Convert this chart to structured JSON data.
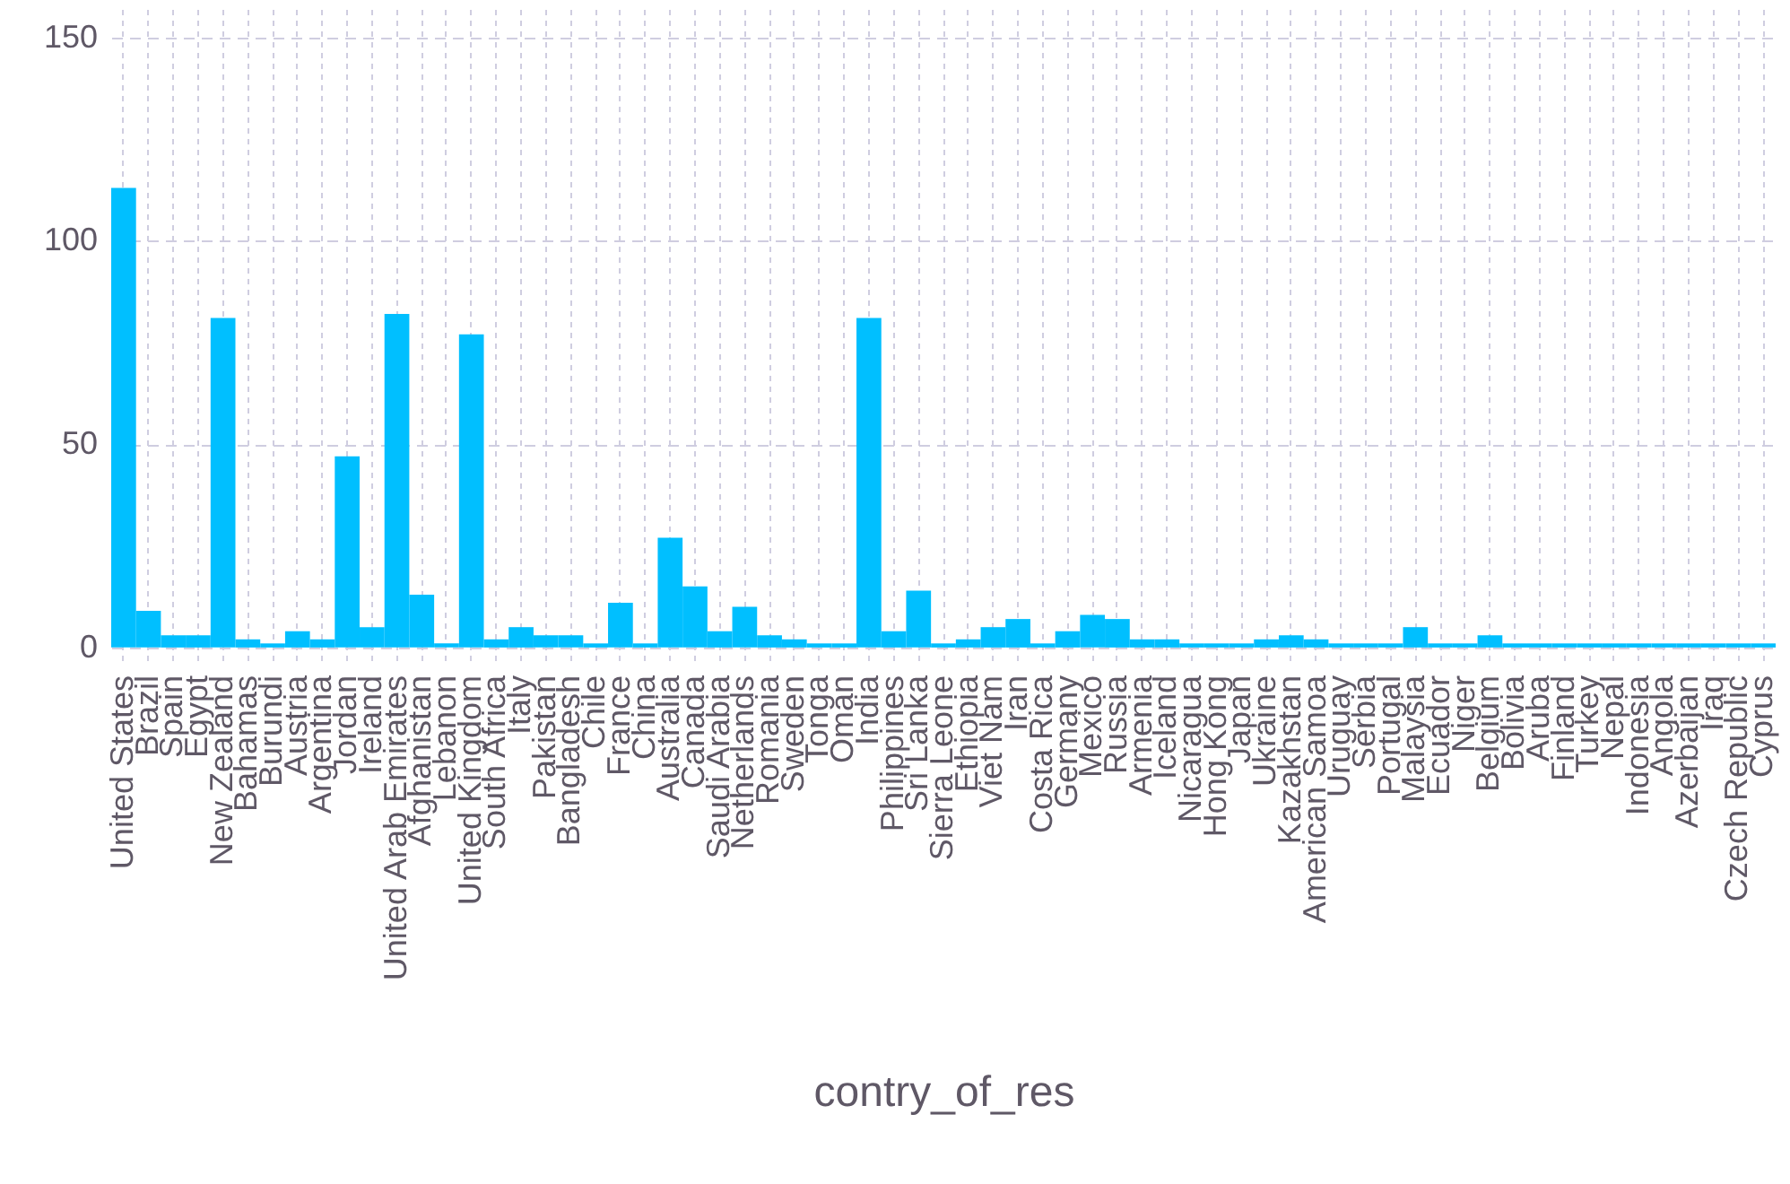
{
  "chart_data": {
    "type": "bar",
    "xlabel": "contry_of_res",
    "categories": [
      "United States",
      "Brazil",
      "Spain",
      "Egypt",
      "New Zealand",
      "Bahamas",
      "Burundi",
      "Austria",
      "Argentina",
      "Jordan",
      "Ireland",
      "United Arab Emirates",
      "Afghanistan",
      "Lebanon",
      "United Kingdom",
      "South Africa",
      "Italy",
      "Pakistan",
      "Bangladesh",
      "Chile",
      "France",
      "China",
      "Australia",
      "Canada",
      "Saudi Arabia",
      "Netherlands",
      "Romania",
      "Sweden",
      "Tonga",
      "Oman",
      "India",
      "Philippines",
      "Sri Lanka",
      "Sierra Leone",
      "Ethiopia",
      "Viet Nam",
      "Iran",
      "Costa Rica",
      "Germany",
      "Mexico",
      "Russia",
      "Armenia",
      "Iceland",
      "Nicaragua",
      "Hong Kong",
      "Japan",
      "Ukraine",
      "Kazakhstan",
      "American Samoa",
      "Uruguay",
      "Serbia",
      "Portugal",
      "Malaysia",
      "Ecuador",
      "Niger",
      "Belgium",
      "Bolivia",
      "Aruba",
      "Finland",
      "Turkey",
      "Nepal",
      "Indonesia",
      "Angola",
      "Azerbaijan",
      "Iraq",
      "Czech Republic",
      "Cyprus"
    ],
    "values": [
      113,
      9,
      3,
      3,
      81,
      2,
      1,
      4,
      2,
      47,
      5,
      82,
      13,
      1,
      77,
      2,
      5,
      3,
      3,
      1,
      11,
      1,
      27,
      15,
      4,
      10,
      3,
      2,
      1,
      1,
      81,
      4,
      14,
      1,
      2,
      5,
      7,
      1,
      4,
      8,
      7,
      2,
      2,
      1,
      1,
      1,
      2,
      3,
      2,
      1,
      1,
      1,
      5,
      1,
      1,
      3,
      1,
      1,
      1,
      1,
      1,
      1,
      1,
      1,
      1,
      1,
      1
    ],
    "color": "#00bfff",
    "ylim": [
      -4,
      157
    ],
    "yticks": [
      0,
      50,
      100,
      150
    ],
    "grid": true
  }
}
